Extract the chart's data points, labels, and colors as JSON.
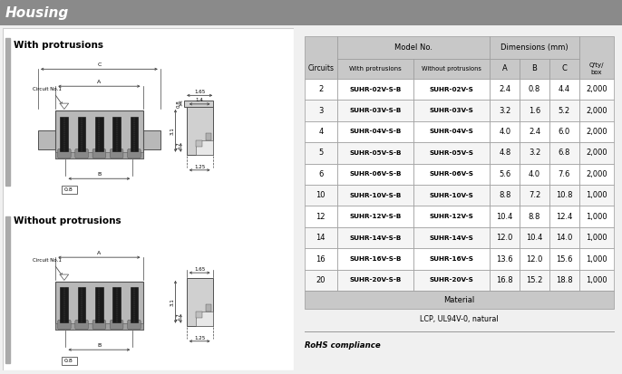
{
  "title": "Housing",
  "title_bg": "#8a8a8a",
  "title_color": "white",
  "bg_color": "#f0f0f0",
  "section1_title": "With protrusions",
  "section2_title": "Without protrusions",
  "table_data": [
    [
      "2",
      "SUHR-02V-S-B",
      "SUHR-02V-S",
      "2.4",
      "0.8",
      "4.4",
      "2,000"
    ],
    [
      "3",
      "SUHR-03V-S-B",
      "SUHR-03V-S",
      "3.2",
      "1.6",
      "5.2",
      "2,000"
    ],
    [
      "4",
      "SUHR-04V-S-B",
      "SUHR-04V-S",
      "4.0",
      "2.4",
      "6.0",
      "2,000"
    ],
    [
      "5",
      "SUHR-05V-S-B",
      "SUHR-05V-S",
      "4.8",
      "3.2",
      "6.8",
      "2,000"
    ],
    [
      "6",
      "SUHR-06V-S-B",
      "SUHR-06V-S",
      "5.6",
      "4.0",
      "7.6",
      "2,000"
    ],
    [
      "10",
      "SUHR-10V-S-B",
      "SUHR-10V-S",
      "8.8",
      "7.2",
      "10.8",
      "1,000"
    ],
    [
      "12",
      "SUHR-12V-S-B",
      "SUHR-12V-S",
      "10.4",
      "8.8",
      "12.4",
      "1,000"
    ],
    [
      "14",
      "SUHR-14V-S-B",
      "SUHR-14V-S",
      "12.0",
      "10.4",
      "14.0",
      "1,000"
    ],
    [
      "16",
      "SUHR-16V-S-B",
      "SUHR-16V-S",
      "13.6",
      "12.0",
      "15.6",
      "1,000"
    ],
    [
      "20",
      "SUHR-20V-S-B",
      "SUHR-20V-S",
      "16.8",
      "15.2",
      "18.8",
      "1,000"
    ]
  ],
  "material_label": "Material",
  "material_value": "LCP, UL94V-0, natural",
  "rohs_label": "RoHS compliance",
  "header_bg": "#c8c8c8",
  "row_bg_odd": "#ffffff",
  "row_bg_even": "#f5f5f5",
  "border_color": "#999999"
}
